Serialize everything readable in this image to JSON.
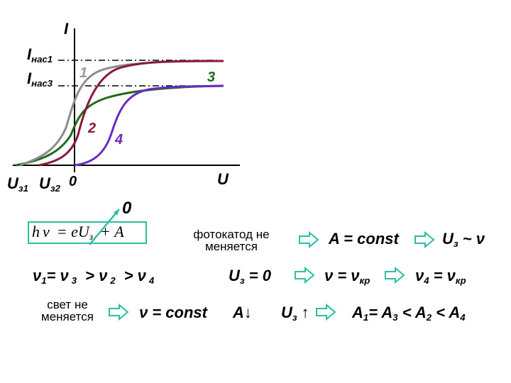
{
  "graph": {
    "axis_i": "I",
    "axis_u": "U",
    "origin": "0",
    "i_sat1": {
      "main": "I",
      "sub": "нас1"
    },
    "i_sat3": {
      "main": "I",
      "sub": "нас3"
    },
    "u_stop1": {
      "main": "U",
      "sub": "з1"
    },
    "u_stop2": {
      "main": "U",
      "sub": "з2"
    },
    "curve_labels": [
      "1",
      "2",
      "3",
      "4"
    ],
    "colors": {
      "c1": "#8c8c8c",
      "c2": "#8b1a3a",
      "c3": "#1e6b1e",
      "c4": "#6a2bc4",
      "label3": "#1e6b1e",
      "label4": "#6a2bc4",
      "label2": "#8b1a3a",
      "label1": "#9a9a9a"
    }
  },
  "formula": {
    "h": "h",
    "nu": "ν",
    "rhs": "= eU",
    "sub": "з",
    "plus": "+ A",
    "crossed_to": "0",
    "box_color": "#2bbfa0"
  },
  "rows": {
    "r1": {
      "note": "фотокатод не меняется",
      "a": "A = const",
      "u": "U",
      "u_sub": "з",
      "u_rest": " ~ ν"
    },
    "r2": {
      "v1": "ν",
      "s1": "1",
      "eq": "= ν",
      "s3": "3",
      "gt1": "> ν",
      "s2": "2",
      "gt2": "> ν",
      "s4": "4",
      "u": "U",
      "u_sub": "з",
      "u_rest": " = 0",
      "vk": "ν = ν",
      "vk_sub": "кр",
      "v4": "ν",
      "v4_sub": "4",
      "v4_rest": " = ν",
      "v4_sub2": "кр"
    },
    "r3": {
      "note": "свет не меняется",
      "v": "ν = const",
      "a": "A↓",
      "u": "U",
      "u_sub": "з",
      "up": "↑",
      "rel_a1": "A",
      "s1": "1",
      "rel_eq": "= A",
      "s3": "3",
      "rel_lt1": " < A",
      "s2": "2",
      "rel_lt2": " < A",
      "s4": "4"
    }
  },
  "arrow_color": "#2bbfa0"
}
